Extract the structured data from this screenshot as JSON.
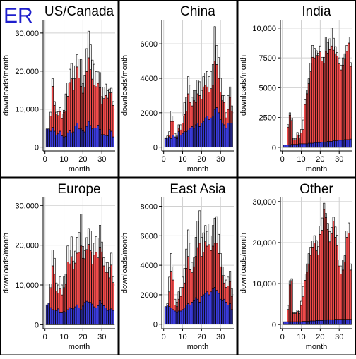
{
  "figure": {
    "label": "ER",
    "label_color": "#1e1ecc",
    "stack_colors": {
      "base": "#3b3bdc",
      "middle": "#f04a4a",
      "top": "#f4f4f4"
    },
    "stack_order": [
      "base",
      "middle",
      "top"
    ],
    "grid_color": "#d0d0d0"
  },
  "chart_data": [
    {
      "type": "bar",
      "title": "US/Canada",
      "xlabel": "month",
      "ylabel": "downloads/month",
      "xlim": [
        -1,
        37
      ],
      "ylim": [
        -1000,
        33500
      ],
      "xticks": [
        0,
        10,
        20,
        30
      ],
      "yticks": [
        0,
        10000,
        20000,
        30000
      ],
      "ytick_labels": [
        "0",
        "10,000",
        "20,000",
        "30,000"
      ],
      "x": [
        1,
        2,
        3,
        4,
        5,
        6,
        7,
        8,
        9,
        10,
        11,
        12,
        13,
        14,
        15,
        16,
        17,
        18,
        19,
        20,
        21,
        22,
        23,
        24,
        25,
        26,
        27,
        28,
        29,
        30,
        31,
        32,
        33,
        34,
        35,
        36
      ],
      "series": [
        {
          "key": "base",
          "values": [
            4800,
            4800,
            4200,
            5200,
            4200,
            3200,
            3500,
            4200,
            3000,
            2700,
            2800,
            3800,
            4300,
            3800,
            4000,
            5600,
            6300,
            4800,
            4800,
            4300,
            4000,
            5500,
            6800,
            5700,
            4800,
            5000,
            5000,
            5800,
            4700,
            3300,
            3300,
            3100,
            3000,
            4600,
            4200,
            2700
          ]
        },
        {
          "key": "middle",
          "values": [
            0,
            0,
            4000,
            10800,
            6800,
            5500,
            4800,
            5200,
            4500,
            6500,
            6700,
            9600,
            12700,
            14200,
            11000,
            12400,
            14800,
            13400,
            11200,
            9900,
            11800,
            14400,
            16700,
            14700,
            13100,
            11300,
            10900,
            11000,
            10900,
            8000,
            9500,
            10500,
            9900,
            9700,
            10100,
            8300
          ]
        },
        {
          "key": "top",
          "values": [
            0,
            0,
            1000,
            2000,
            1000,
            500,
            1000,
            1000,
            1200,
            500,
            4500,
            3500,
            3500,
            4000,
            3000,
            3400,
            3200,
            5000,
            7000,
            2500,
            3000,
            6000,
            7000,
            6500,
            5000,
            5500,
            4000,
            3000,
            4000,
            2000,
            3000,
            3000,
            2000,
            1000,
            1200,
            1000
          ]
        }
      ]
    },
    {
      "type": "bar",
      "title": "China",
      "xlabel": "month",
      "ylabel": "downloads/month",
      "xlim": [
        -1,
        37
      ],
      "ylim": [
        -220,
        7400
      ],
      "xticks": [
        0,
        10,
        20,
        30
      ],
      "yticks": [
        0,
        2000,
        4000,
        6000
      ],
      "ytick_labels": [
        "0",
        "2000",
        "4000",
        "6000"
      ],
      "x": [
        1,
        2,
        3,
        4,
        5,
        6,
        7,
        8,
        9,
        10,
        11,
        12,
        13,
        14,
        15,
        16,
        17,
        18,
        19,
        20,
        21,
        22,
        23,
        24,
        25,
        26,
        27,
        28,
        29,
        30,
        31,
        32,
        33,
        34,
        35,
        36
      ],
      "series": [
        {
          "key": "base",
          "values": [
            500,
            550,
            600,
            500,
            700,
            600,
            500,
            900,
            700,
            800,
            900,
            900,
            1000,
            1100,
            1200,
            1100,
            1300,
            1400,
            1200,
            1400,
            1500,
            1700,
            1800,
            1600,
            1700,
            1800,
            2200,
            2300,
            2000,
            1600,
            1400,
            1300,
            1100,
            1400,
            1400,
            1400
          ]
        },
        {
          "key": "middle",
          "values": [
            0,
            0,
            100,
            1000,
            800,
            0,
            100,
            200,
            300,
            600,
            1000,
            1200,
            2100,
            1500,
            1200,
            1600,
            1300,
            1700,
            1800,
            1400,
            2000,
            1900,
            1700,
            1600,
            1700,
            1800,
            2800,
            2500,
            2000,
            1600,
            1300,
            1300,
            600,
            800,
            1500,
            700
          ]
        },
        {
          "key": "top",
          "values": [
            50,
            100,
            200,
            600,
            300,
            200,
            100,
            200,
            300,
            400,
            700,
            800,
            1000,
            1000,
            500,
            600,
            700,
            800,
            800,
            500,
            600,
            700,
            900,
            900,
            1000,
            1200,
            2000,
            1100,
            1200,
            800,
            300,
            400,
            300,
            800,
            600,
            300
          ]
        }
      ]
    },
    {
      "type": "bar",
      "title": "India",
      "xlabel": "month",
      "ylabel": "downloads/month",
      "xlim": [
        -1,
        37
      ],
      "ylim": [
        -300,
        10700
      ],
      "xticks": [
        0,
        10,
        20,
        30
      ],
      "yticks": [
        0,
        2500,
        5000,
        7500,
        10000
      ],
      "ytick_labels": [
        "0",
        "2500",
        "5000",
        "7500",
        "10,000"
      ],
      "x": [
        1,
        2,
        3,
        4,
        5,
        6,
        7,
        8,
        9,
        10,
        11,
        12,
        13,
        14,
        15,
        16,
        17,
        18,
        19,
        20,
        21,
        22,
        23,
        24,
        25,
        26,
        27,
        28,
        29,
        30,
        31,
        32,
        33,
        34,
        35,
        36
      ],
      "series": [
        {
          "key": "base",
          "values": [
            200,
            200,
            200,
            200,
            250,
            250,
            250,
            250,
            300,
            300,
            300,
            300,
            300,
            350,
            350,
            350,
            400,
            400,
            400,
            400,
            450,
            450,
            450,
            500,
            500,
            500,
            550,
            550,
            550,
            600,
            600,
            600,
            650,
            650,
            650,
            700
          ]
        },
        {
          "key": "middle",
          "values": [
            0,
            0,
            1500,
            2500,
            2000,
            400,
            400,
            800,
            500,
            900,
            1200,
            3300,
            4200,
            5000,
            6000,
            7200,
            7100,
            7300,
            7300,
            7600,
            6800,
            6600,
            7600,
            7400,
            7700,
            8000,
            7600,
            7300,
            7100,
            6400,
            5900,
            6300,
            6800,
            7400,
            8100,
            6100
          ]
        },
        {
          "key": "top",
          "values": [
            0,
            0,
            200,
            200,
            200,
            100,
            100,
            200,
            200,
            300,
            800,
            400,
            300,
            400,
            700,
            1000,
            800,
            400,
            200,
            500,
            300,
            500,
            1200,
            900,
            900,
            1500,
            1000,
            600,
            300,
            500,
            400,
            600,
            400,
            500,
            500,
            300
          ]
        }
      ]
    },
    {
      "type": "bar",
      "title": "Europe",
      "xlabel": "month",
      "ylabel": "downloads/month",
      "xlim": [
        -1,
        37
      ],
      "ylim": [
        -1000,
        32000
      ],
      "xticks": [
        0,
        10,
        20,
        30
      ],
      "yticks": [
        0,
        10000,
        20000,
        30000
      ],
      "ytick_labels": [
        "0",
        "10,000",
        "20,000",
        "30,000"
      ],
      "x": [
        1,
        2,
        3,
        4,
        5,
        6,
        7,
        8,
        9,
        10,
        11,
        12,
        13,
        14,
        15,
        16,
        17,
        18,
        19,
        20,
        21,
        22,
        23,
        24,
        25,
        26,
        27,
        28,
        29,
        30,
        31,
        32,
        33,
        34,
        35,
        36
      ],
      "series": [
        {
          "key": "base",
          "values": [
            5000,
            5400,
            4300,
            3800,
            3700,
            3500,
            4000,
            3000,
            3000,
            3300,
            3200,
            3800,
            4300,
            4100,
            4000,
            4500,
            5000,
            4200,
            3800,
            4700,
            5600,
            5900,
            5700,
            5600,
            5200,
            4500,
            4200,
            4800,
            6000,
            5300,
            4800,
            4200,
            3600,
            3800,
            4000,
            3600
          ]
        },
        {
          "key": "middle",
          "values": [
            0,
            0,
            5000,
            11000,
            9000,
            5000,
            4000,
            6000,
            4500,
            6000,
            7000,
            12000,
            11000,
            13000,
            10000,
            11000,
            13000,
            14000,
            16000,
            12000,
            11000,
            13000,
            14500,
            13000,
            10000,
            13000,
            14000,
            12000,
            13500,
            13000,
            10000,
            9000,
            9500,
            8000,
            11000,
            7000
          ]
        },
        {
          "key": "top",
          "values": [
            0,
            0,
            1000,
            4000,
            4000,
            2000,
            2000,
            3000,
            2500,
            2700,
            2500,
            4000,
            3500,
            5000,
            2000,
            3000,
            4000,
            5000,
            8000,
            3000,
            2000,
            3000,
            4000,
            5000,
            3000,
            3000,
            4000,
            5000,
            5500,
            2500,
            2000,
            2500,
            2500,
            2500,
            3000,
            1500
          ]
        }
      ]
    },
    {
      "type": "bar",
      "title": "East Asia",
      "xlabel": "month",
      "ylabel": "downloads/month",
      "xlim": [
        -1,
        37
      ],
      "ylim": [
        -300,
        8600
      ],
      "xticks": [
        0,
        10,
        20,
        30
      ],
      "yticks": [
        0,
        2000,
        4000,
        6000,
        8000
      ],
      "ytick_labels": [
        "0",
        "2000",
        "4000",
        "6000",
        "8000"
      ],
      "x": [
        1,
        2,
        3,
        4,
        5,
        6,
        7,
        8,
        9,
        10,
        11,
        12,
        13,
        14,
        15,
        16,
        17,
        18,
        19,
        20,
        21,
        22,
        23,
        24,
        25,
        26,
        27,
        28,
        29,
        30,
        31,
        32,
        33,
        34,
        35,
        36
      ],
      "series": [
        {
          "key": "base",
          "values": [
            1200,
            1300,
            1200,
            1100,
            1000,
            900,
            800,
            900,
            900,
            1000,
            1100,
            1300,
            1400,
            1300,
            1500,
            1600,
            1800,
            1700,
            1500,
            1900,
            2000,
            2100,
            2200,
            2000,
            2200,
            2400,
            2500,
            2300,
            2100,
            1700,
            1600,
            1700,
            1500,
            1300,
            1400,
            1000
          ]
        },
        {
          "key": "middle",
          "values": [
            0,
            0,
            1000,
            2500,
            2000,
            400,
            400,
            800,
            1000,
            1500,
            1700,
            2500,
            3200,
            2400,
            2000,
            2300,
            2800,
            3500,
            4000,
            2700,
            2900,
            3500,
            3100,
            3400,
            2800,
            2900,
            3000,
            3200,
            2700,
            2200,
            1700,
            1100,
            1000,
            1300,
            1500,
            900
          ]
        },
        {
          "key": "top",
          "values": [
            0,
            100,
            1000,
            1200,
            900,
            400,
            300,
            500,
            600,
            700,
            1000,
            1300,
            1800,
            1800,
            700,
            600,
            1300,
            1800,
            2200,
            1300,
            1300,
            1100,
            1000,
            1400,
            1000,
            1400,
            1700,
            1800,
            1300,
            900,
            600,
            500,
            500,
            600,
            700,
            500
          ]
        }
      ]
    },
    {
      "type": "bar",
      "title": "Other",
      "xlabel": "month",
      "ylabel": "downloads/month",
      "xlim": [
        -1,
        37
      ],
      "ylim": [
        -1000,
        31000
      ],
      "xticks": [
        0,
        10,
        20,
        30
      ],
      "yticks": [
        0,
        10000,
        20000,
        30000
      ],
      "ytick_labels": [
        "0",
        "10,000",
        "20,000",
        "30,000"
      ],
      "x": [
        1,
        2,
        3,
        4,
        5,
        6,
        7,
        8,
        9,
        10,
        11,
        12,
        13,
        14,
        15,
        16,
        17,
        18,
        19,
        20,
        21,
        22,
        23,
        24,
        25,
        26,
        27,
        28,
        29,
        30,
        31,
        32,
        33,
        34,
        35,
        36
      ],
      "series": [
        {
          "key": "base",
          "values": [
            700,
            700,
            700,
            700,
            700,
            700,
            700,
            700,
            700,
            700,
            800,
            800,
            800,
            800,
            900,
            900,
            900,
            1000,
            1000,
            1000,
            1000,
            1100,
            1100,
            1200,
            1200,
            1200,
            1200,
            1300,
            1300,
            1300,
            1300,
            1300,
            1300,
            1300,
            1300,
            1300
          ]
        },
        {
          "key": "middle",
          "values": [
            0,
            0,
            3000,
            9000,
            10000,
            2000,
            2000,
            2500,
            2000,
            4000,
            6000,
            10000,
            12000,
            14000,
            16000,
            18000,
            19000,
            17000,
            16000,
            21000,
            22000,
            27000,
            25000,
            22000,
            19000,
            21000,
            24000,
            20000,
            18000,
            13000,
            11000,
            12000,
            14000,
            20000,
            21000,
            12000
          ]
        },
        {
          "key": "top",
          "values": [
            0,
            0,
            1000,
            1000,
            500,
            200,
            200,
            300,
            500,
            1000,
            2500,
            1500,
            2000,
            2500,
            2000,
            1500,
            1800,
            2500,
            2000,
            2000,
            3000,
            1500,
            1000,
            1500,
            2500,
            1500,
            1000,
            2500,
            2500,
            1500,
            2000,
            2500,
            1500,
            1500,
            2500,
            1500
          ]
        }
      ]
    }
  ]
}
